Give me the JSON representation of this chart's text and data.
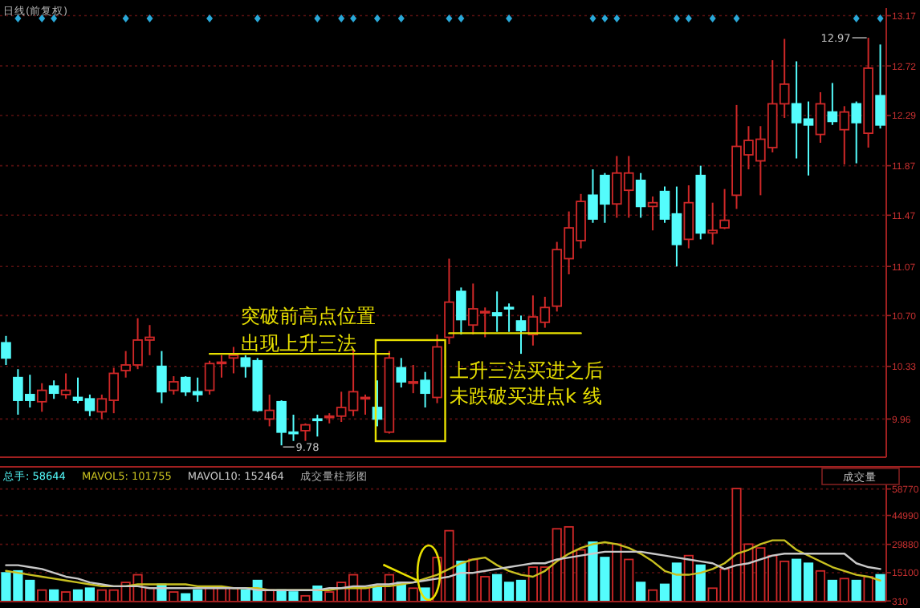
{
  "chart_data": [
    {
      "type": "candlestick",
      "title": "日线(前复权)",
      "log": true,
      "grid": "y",
      "tick_labels": "y",
      "categories": [
        null,
        null,
        null,
        null,
        null,
        null,
        null,
        null,
        null,
        null,
        null,
        null,
        null,
        null,
        null,
        null,
        null,
        null,
        null,
        null,
        null,
        null,
        null,
        null,
        null,
        null,
        null,
        null,
        null,
        null,
        null,
        null,
        null,
        null,
        null,
        null,
        null,
        null,
        null,
        null,
        null,
        null,
        null,
        null,
        null,
        null,
        null,
        null,
        null,
        null,
        null,
        null,
        null,
        null,
        null,
        null,
        null,
        null,
        null,
        null,
        null,
        null,
        null,
        null,
        null,
        null,
        null,
        null,
        null,
        null,
        null,
        null,
        null,
        null
      ],
      "ohlc": [
        [
          10.5,
          10.55,
          10.34,
          10.39
        ],
        [
          10.25,
          10.31,
          9.99,
          10.09
        ],
        [
          10.13,
          10.27,
          10.04,
          10.09
        ],
        [
          10.08,
          10.21,
          10.01,
          10.16
        ],
        [
          10.19,
          10.23,
          10.1,
          10.14
        ],
        [
          10.13,
          10.28,
          10.1,
          10.16
        ],
        [
          10.11,
          10.25,
          10.07,
          10.09
        ],
        [
          10.1,
          10.13,
          9.98,
          10.02
        ],
        [
          10.01,
          10.13,
          9.96,
          10.1
        ],
        [
          10.09,
          10.32,
          10.0,
          10.28
        ],
        [
          10.3,
          10.44,
          10.25,
          10.34
        ],
        [
          10.34,
          10.68,
          10.31,
          10.52
        ],
        [
          10.52,
          10.63,
          10.41,
          10.54
        ],
        [
          10.33,
          10.44,
          10.07,
          10.15
        ],
        [
          10.16,
          10.26,
          10.13,
          10.22
        ],
        [
          10.25,
          10.26,
          10.12,
          10.15
        ],
        [
          10.15,
          10.25,
          10.08,
          10.13
        ],
        [
          10.16,
          10.37,
          10.13,
          10.35
        ],
        [
          10.35,
          10.41,
          10.25,
          10.36
        ],
        [
          10.39,
          10.47,
          10.28,
          10.41
        ],
        [
          10.39,
          10.41,
          10.25,
          10.33
        ],
        [
          10.37,
          10.39,
          10.01,
          10.02
        ],
        [
          9.96,
          10.13,
          9.91,
          10.02
        ],
        [
          10.08,
          10.09,
          9.78,
          9.87
        ],
        [
          9.87,
          9.99,
          9.81,
          9.86
        ],
        [
          9.88,
          9.93,
          9.81,
          9.92
        ],
        [
          9.96,
          9.99,
          9.84,
          9.95
        ],
        [
          9.97,
          10.0,
          9.93,
          9.98
        ],
        [
          9.98,
          10.15,
          9.94,
          10.04
        ],
        [
          10.02,
          10.45,
          9.98,
          10.15
        ],
        [
          10.1,
          10.13,
          9.99,
          10.11
        ],
        [
          10.04,
          10.23,
          9.91,
          9.96
        ],
        [
          9.87,
          10.44,
          9.86,
          10.39
        ],
        [
          10.32,
          10.39,
          10.18,
          10.22
        ],
        [
          10.21,
          10.34,
          10.14,
          10.22
        ],
        [
          10.23,
          10.29,
          10.04,
          10.14
        ],
        [
          10.11,
          10.56,
          10.07,
          10.47
        ],
        [
          10.54,
          11.13,
          10.49,
          10.8
        ],
        [
          10.88,
          10.91,
          10.56,
          10.67
        ],
        [
          10.63,
          10.94,
          10.56,
          10.75
        ],
        [
          10.72,
          10.76,
          10.54,
          10.73
        ],
        [
          10.72,
          10.88,
          10.58,
          10.7
        ],
        [
          10.76,
          10.79,
          10.58,
          10.75
        ],
        [
          10.66,
          10.7,
          10.42,
          10.59
        ],
        [
          10.56,
          10.85,
          10.48,
          10.69
        ],
        [
          10.65,
          10.84,
          10.61,
          10.76
        ],
        [
          10.77,
          11.26,
          10.73,
          11.2
        ],
        [
          11.13,
          11.5,
          11.01,
          11.37
        ],
        [
          11.27,
          11.64,
          11.21,
          11.58
        ],
        [
          11.63,
          11.84,
          11.41,
          11.44
        ],
        [
          11.79,
          11.81,
          11.41,
          11.56
        ],
        [
          11.56,
          11.95,
          11.45,
          11.81
        ],
        [
          11.67,
          11.95,
          11.45,
          11.81
        ],
        [
          11.75,
          11.81,
          11.45,
          11.54
        ],
        [
          11.54,
          11.62,
          11.35,
          11.57
        ],
        [
          11.66,
          11.7,
          11.41,
          11.44
        ],
        [
          11.48,
          11.7,
          11.07,
          11.24
        ],
        [
          11.28,
          11.71,
          11.21,
          11.57
        ],
        [
          11.79,
          11.87,
          11.28,
          11.33
        ],
        [
          11.33,
          11.57,
          11.24,
          11.35
        ],
        [
          11.37,
          11.68,
          11.36,
          11.43
        ],
        [
          11.63,
          12.38,
          11.52,
          12.03
        ],
        [
          11.96,
          12.2,
          11.84,
          12.08
        ],
        [
          11.91,
          12.2,
          11.63,
          12.09
        ],
        [
          12.02,
          12.77,
          11.98,
          12.39
        ],
        [
          12.39,
          12.96,
          12.27,
          12.56
        ],
        [
          12.39,
          12.76,
          11.93,
          12.23
        ],
        [
          12.26,
          12.41,
          11.79,
          12.21
        ],
        [
          12.13,
          12.49,
          12.06,
          12.39
        ],
        [
          12.32,
          12.57,
          12.21,
          12.24
        ],
        [
          12.17,
          12.37,
          11.88,
          12.32
        ],
        [
          12.39,
          12.41,
          11.89,
          12.23
        ],
        [
          12.14,
          12.97,
          12.02,
          12.7
        ],
        [
          12.46,
          12.91,
          12.18,
          12.21
        ]
      ],
      "colors": [
        "#54fcfc",
        "#54fcfc",
        "#54fcfc",
        "#d02828",
        "#54fcfc",
        "#d02828",
        "#54fcfc",
        "#54fcfc",
        "#d02828",
        "#d02828",
        "#d02828",
        "#d02828",
        "#d02828",
        "#54fcfc",
        "#d02828",
        "#54fcfc",
        "#54fcfc",
        "#d02828",
        "#d02828",
        "#d02828",
        "#54fcfc",
        "#54fcfc",
        "#d02828",
        "#54fcfc",
        "#54fcfc",
        "#d02828",
        "#54fcfc",
        "#d02828",
        "#d02828",
        "#d02828",
        "#d02828",
        "#54fcfc",
        "#d02828",
        "#54fcfc",
        "#d02828",
        "#54fcfc",
        "#d02828",
        "#d02828",
        "#54fcfc",
        "#d02828",
        "#d02828",
        "#54fcfc",
        "#54fcfc",
        "#54fcfc",
        "#d02828",
        "#d02828",
        "#d02828",
        "#d02828",
        "#d02828",
        "#54fcfc",
        "#54fcfc",
        "#d02828",
        "#d02828",
        "#54fcfc",
        "#d02828",
        "#54fcfc",
        "#54fcfc",
        "#d02828",
        "#54fcfc",
        "#d02828",
        "#d02828",
        "#d02828",
        "#d02828",
        "#d02828",
        "#d02828",
        "#d02828",
        "#54fcfc",
        "#54fcfc",
        "#d02828",
        "#54fcfc",
        "#d02828",
        "#54fcfc",
        "#d02828",
        "#54fcfc"
      ],
      "series": [
        {
          "type": "line",
          "color": "#e8e000",
          "values": [
            null,
            null,
            null,
            null,
            null,
            null,
            null,
            null,
            null,
            null,
            null,
            null,
            null,
            null,
            null,
            null,
            null,
            10.42,
            10.42,
            10.42,
            10.42,
            10.42,
            10.42,
            10.42,
            10.42,
            10.42,
            10.42,
            10.42,
            10.42,
            10.42,
            10.42,
            10.42,
            10.42,
            null,
            null,
            null,
            null,
            null,
            null,
            null,
            null,
            null,
            null,
            null,
            null,
            null,
            null,
            null,
            null,
            null,
            null,
            null,
            null,
            null,
            null,
            null,
            null,
            null,
            null,
            null,
            null,
            null,
            null,
            null,
            null,
            null,
            null,
            null,
            null,
            null,
            null,
            null,
            null,
            null
          ]
        },
        {
          "type": "line",
          "color": "#e8e000",
          "values": [
            null,
            null,
            null,
            null,
            null,
            null,
            null,
            null,
            null,
            null,
            null,
            null,
            null,
            null,
            null,
            null,
            null,
            null,
            null,
            null,
            null,
            null,
            null,
            null,
            null,
            null,
            null,
            null,
            null,
            null,
            null,
            null,
            null,
            null,
            null,
            null,
            null,
            10.57,
            10.57,
            10.57,
            10.57,
            10.57,
            10.57,
            10.57,
            10.57,
            10.57,
            10.57,
            10.57,
            10.57,
            null,
            null,
            null,
            null,
            null,
            null,
            null,
            null,
            null,
            null,
            null,
            null,
            null,
            null,
            null,
            null,
            null,
            null,
            null,
            null,
            null,
            null,
            null,
            null,
            null
          ]
        }
      ],
      "ylim": [
        9.7,
        13.24
      ],
      "yticks": [
        9.96,
        10.33,
        {
          "value": 10.7,
          "label": "10.70"
        },
        11.07,
        11.47,
        11.87,
        12.29,
        12.72,
        13.17
      ],
      "annotations": [
        "突破前高点位置",
        "出现上升三法",
        "上升三法买进之后",
        "未跌破买进点k 线",
        "12.97",
        "9.78"
      ]
    },
    {
      "type": "bar",
      "grid": "y",
      "tick_labels": "y",
      "categories": [
        null,
        null,
        null,
        null,
        null,
        null,
        null,
        null,
        null,
        null,
        null,
        null,
        null,
        null,
        null,
        null,
        null,
        null,
        null,
        null,
        null,
        null,
        null,
        null,
        null,
        null,
        null,
        null,
        null,
        null,
        null,
        null,
        null,
        null,
        null,
        null,
        null,
        null,
        null,
        null,
        null,
        null,
        null,
        null,
        null,
        null,
        null,
        null,
        null,
        null,
        null,
        null,
        null,
        null,
        null,
        null,
        null,
        null,
        null,
        null,
        null,
        null,
        null,
        null,
        null,
        null,
        null,
        null,
        null,
        null,
        null,
        null,
        null,
        null
      ],
      "series": [
        {
          "type": "bar",
          "name": "总手: 58644",
          "values": [
            15000,
            16000,
            11000,
            6000,
            6000,
            5000,
            6000,
            7000,
            6000,
            6000,
            10000,
            14000,
            7000,
            9000,
            5000,
            4000,
            6000,
            7000,
            7000,
            7000,
            6000,
            11000,
            6000,
            6000,
            5000,
            3000,
            8000,
            5000,
            10000,
            14000,
            7000,
            8000,
            14000,
            10000,
            7000,
            7000,
            23000,
            37000,
            21000,
            22000,
            13000,
            14000,
            10000,
            11000,
            18000,
            18000,
            38000,
            39000,
            27000,
            31000,
            23000,
            30000,
            22000,
            10000,
            6000,
            9000,
            20000,
            24000,
            19000,
            7000,
            17000,
            59000,
            30000,
            28000,
            24000,
            21000,
            22000,
            20000,
            16000,
            11000,
            12000,
            11000,
            13000,
            14000
          ],
          "colors": [
            "#54fcfc",
            "#54fcfc",
            "#54fcfc",
            "#d02828",
            "#54fcfc",
            "#d02828",
            "#54fcfc",
            "#54fcfc",
            "#d02828",
            "#d02828",
            "#d02828",
            "#d02828",
            "#d02828",
            "#54fcfc",
            "#d02828",
            "#54fcfc",
            "#54fcfc",
            "#d02828",
            "#d02828",
            "#d02828",
            "#54fcfc",
            "#54fcfc",
            "#d02828",
            "#54fcfc",
            "#54fcfc",
            "#d02828",
            "#54fcfc",
            "#d02828",
            "#d02828",
            "#d02828",
            "#d02828",
            "#54fcfc",
            "#d02828",
            "#54fcfc",
            "#d02828",
            "#54fcfc",
            "#d02828",
            "#d02828",
            "#54fcfc",
            "#d02828",
            "#d02828",
            "#54fcfc",
            "#54fcfc",
            "#54fcfc",
            "#d02828",
            "#d02828",
            "#d02828",
            "#d02828",
            "#d02828",
            "#54fcfc",
            "#54fcfc",
            "#d02828",
            "#d02828",
            "#54fcfc",
            "#d02828",
            "#54fcfc",
            "#54fcfc",
            "#d02828",
            "#54fcfc",
            "#d02828",
            "#d02828",
            "#d02828",
            "#d02828",
            "#d02828",
            "#d02828",
            "#d02828",
            "#54fcfc",
            "#54fcfc",
            "#d02828",
            "#54fcfc",
            "#d02828",
            "#54fcfc",
            "#d02828",
            "#54fcfc"
          ]
        },
        {
          "type": "line",
          "name": "MAVOL5: 101755",
          "color": "#c8c020",
          "values": [
            16000,
            15000,
            14000,
            13000,
            12000,
            11000,
            10000,
            9000,
            8000,
            8000,
            8000,
            9000,
            9000,
            9000,
            9000,
            9000,
            8000,
            8000,
            8000,
            7000,
            7000,
            7000,
            6000,
            6000,
            6000,
            6000,
            6000,
            6000,
            7000,
            7000,
            7000,
            8000,
            8000,
            9000,
            10000,
            12000,
            14000,
            17000,
            20000,
            22000,
            23000,
            19000,
            16000,
            14000,
            13000,
            16000,
            21000,
            25000,
            28000,
            30000,
            31000,
            30000,
            28000,
            25000,
            21000,
            16000,
            14000,
            14000,
            15000,
            17000,
            20000,
            25000,
            27000,
            30000,
            32000,
            32000,
            27000,
            24000,
            21000,
            18000,
            16000,
            14000,
            13000,
            11000
          ]
        },
        {
          "type": "line",
          "name": "MAVOL10: 152464",
          "color": "#c8c8c8",
          "values": [
            19000,
            19000,
            18000,
            17000,
            15000,
            13000,
            12000,
            10000,
            9000,
            8000,
            8000,
            8000,
            7000,
            7000,
            7000,
            7000,
            7000,
            7000,
            7000,
            7000,
            7000,
            6000,
            6000,
            6000,
            6000,
            6000,
            6000,
            7000,
            7000,
            8000,
            8000,
            9000,
            9000,
            10000,
            10000,
            11000,
            12000,
            13000,
            15000,
            15000,
            16000,
            17000,
            18000,
            19000,
            20000,
            20000,
            22000,
            23000,
            24000,
            25000,
            26000,
            26000,
            26000,
            26000,
            25000,
            24000,
            23000,
            22000,
            21000,
            20000,
            17000,
            19000,
            20000,
            22000,
            24000,
            25000,
            25000,
            25000,
            25000,
            25000,
            25000,
            20000,
            18000,
            17000
          ]
        }
      ],
      "ylim": [
        0,
        67000
      ],
      "yticks": [
        310,
        15100,
        29880,
        44990,
        58770
      ],
      "annotations": [
        "成交量柱形图",
        "成交量"
      ]
    }
  ]
}
